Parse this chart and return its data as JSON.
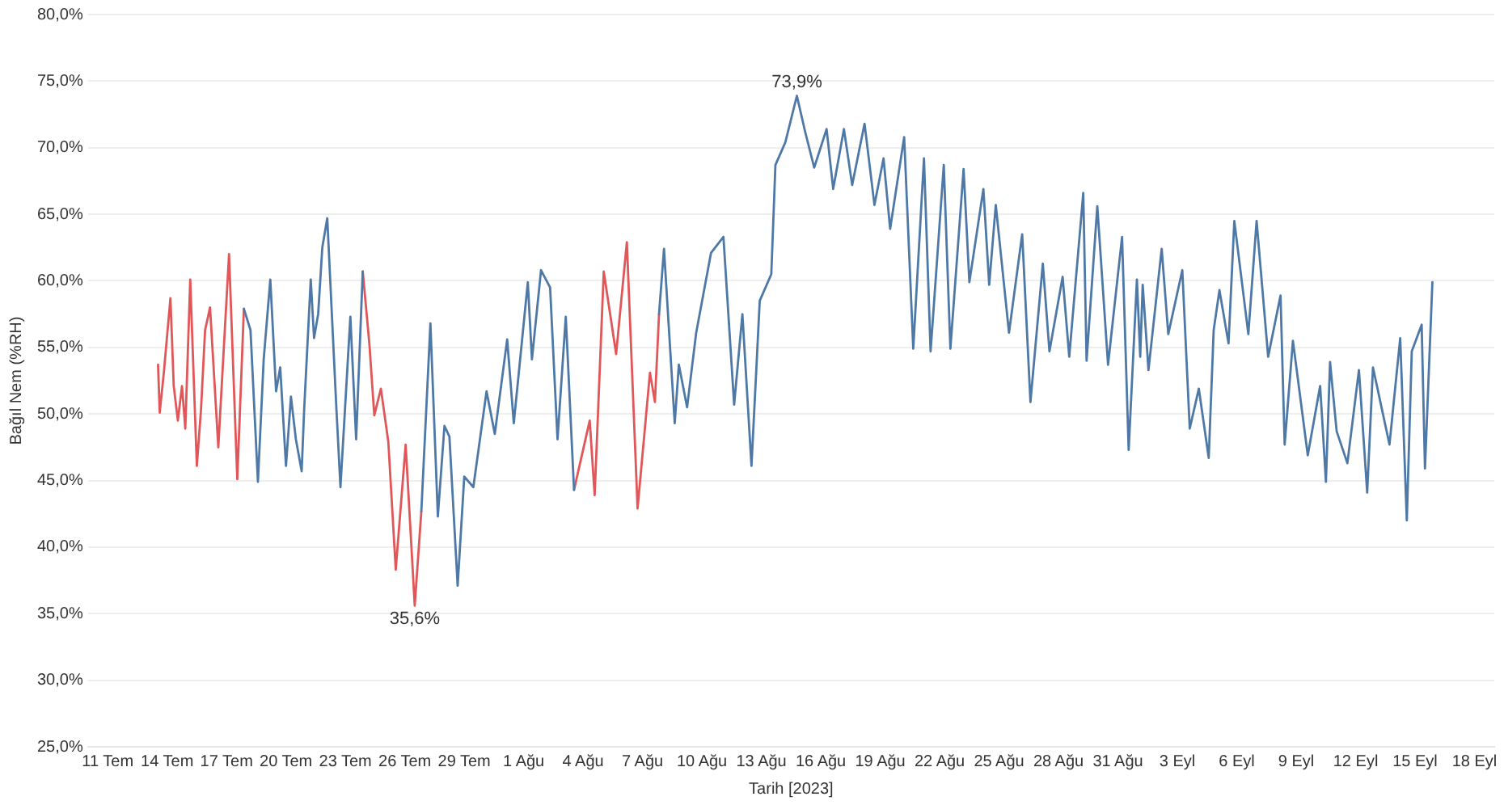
{
  "chart_data": {
    "type": "line",
    "xlabel": "Tarih [2023]",
    "ylabel": "Bağıl Nem (%RH)",
    "grid": "y",
    "legend": false,
    "marker": "none",
    "line_style": "solid",
    "xlim": [
      "2023-07-10T00:00",
      "2023-09-19T00:00"
    ],
    "xticks": [
      {
        "value": "2023-07-11T00:00",
        "label": "11 Tem"
      },
      {
        "value": "2023-07-14T00:00",
        "label": "14 Tem"
      },
      {
        "value": "2023-07-17T00:00",
        "label": "17 Tem"
      },
      {
        "value": "2023-07-20T00:00",
        "label": "20 Tem"
      },
      {
        "value": "2023-07-23T00:00",
        "label": "23 Tem"
      },
      {
        "value": "2023-07-26T00:00",
        "label": "26 Tem"
      },
      {
        "value": "2023-07-29T00:00",
        "label": "29 Tem"
      },
      {
        "value": "2023-08-01T00:00",
        "label": "1 Ağu"
      },
      {
        "value": "2023-08-04T00:00",
        "label": "4 Ağu"
      },
      {
        "value": "2023-08-07T00:00",
        "label": "7 Ağu"
      },
      {
        "value": "2023-08-10T00:00",
        "label": "10 Ağu"
      },
      {
        "value": "2023-08-13T00:00",
        "label": "13 Ağu"
      },
      {
        "value": "2023-08-16T00:00",
        "label": "16 Ağu"
      },
      {
        "value": "2023-08-19T00:00",
        "label": "19 Ağu"
      },
      {
        "value": "2023-08-22T00:00",
        "label": "22 Ağu"
      },
      {
        "value": "2023-08-25T00:00",
        "label": "25 Ağu"
      },
      {
        "value": "2023-08-28T00:00",
        "label": "28 Ağu"
      },
      {
        "value": "2023-08-31T00:00",
        "label": "31 Ağu"
      },
      {
        "value": "2023-09-03T00:00",
        "label": "3 Eyl"
      },
      {
        "value": "2023-09-06T00:00",
        "label": "6 Eyl"
      },
      {
        "value": "2023-09-09T00:00",
        "label": "9 Eyl"
      },
      {
        "value": "2023-09-12T00:00",
        "label": "12 Eyl"
      },
      {
        "value": "2023-09-15T00:00",
        "label": "15 Eyl"
      },
      {
        "value": "2023-09-18T00:00",
        "label": "18 Eyl"
      }
    ],
    "ylim": [
      25,
      80
    ],
    "yticks": [
      {
        "value": 25,
        "label": "25,0%"
      },
      {
        "value": 30,
        "label": "30,0%"
      },
      {
        "value": 35,
        "label": "35,0%"
      },
      {
        "value": 40,
        "label": "40,0%"
      },
      {
        "value": 45,
        "label": "45,0%"
      },
      {
        "value": 50,
        "label": "50,0%"
      },
      {
        "value": 55,
        "label": "55,0%"
      },
      {
        "value": 60,
        "label": "60,0%"
      },
      {
        "value": 65,
        "label": "65,0%"
      },
      {
        "value": 70,
        "label": "70,0%"
      },
      {
        "value": 75,
        "label": "75,0%"
      },
      {
        "value": 80,
        "label": "80,0%"
      }
    ],
    "annotations": [
      {
        "text": "73,9%",
        "x": "2023-08-14T19:00",
        "y": 73.9
      },
      {
        "text": "35,6%",
        "x": "2023-07-26T12:00",
        "y": 35.6
      }
    ],
    "x": [
      "2023-07-13T13:00",
      "2023-07-13T15:00",
      "2023-07-13T20:00",
      "2023-07-14T04:00",
      "2023-07-14T08:00",
      "2023-07-14T13:00",
      "2023-07-14T18:00",
      "2023-07-14T22:00",
      "2023-07-15T04:00",
      "2023-07-15T07:00",
      "2023-07-15T12:00",
      "2023-07-15T17:00",
      "2023-07-15T22:00",
      "2023-07-16T04:00",
      "2023-07-16T14:00",
      "2023-07-17T03:00",
      "2023-07-17T13:00",
      "2023-07-17T21:00",
      "2023-07-18T05:00",
      "2023-07-18T14:00",
      "2023-07-18T21:00",
      "2023-07-19T05:00",
      "2023-07-19T12:00",
      "2023-07-19T17:00",
      "2023-07-20T00:00",
      "2023-07-20T06:00",
      "2023-07-20T12:00",
      "2023-07-20T19:00",
      "2023-07-20T22:00",
      "2023-07-21T06:00",
      "2023-07-21T10:00",
      "2023-07-21T15:00",
      "2023-07-21T20:00",
      "2023-07-22T02:00",
      "2023-07-22T13:00",
      "2023-07-22T18:00",
      "2023-07-23T06:00",
      "2023-07-23T13:00",
      "2023-07-23T21:00",
      "2023-07-24T05:00",
      "2023-07-24T11:00",
      "2023-07-24T19:00",
      "2023-07-25T04:00",
      "2023-07-25T13:00",
      "2023-07-26T01:00",
      "2023-07-26T12:00",
      "2023-07-26T20:00",
      "2023-07-27T07:00",
      "2023-07-27T16:00",
      "2023-07-28T00:00",
      "2023-07-28T06:00",
      "2023-07-28T16:00",
      "2023-07-29T00:00",
      "2023-07-29T11:00",
      "2023-07-30T03:00",
      "2023-07-30T13:00",
      "2023-07-31T04:00",
      "2023-07-31T12:00",
      "2023-08-01T05:00",
      "2023-08-01T10:00",
      "2023-08-01T21:00",
      "2023-08-02T08:00",
      "2023-08-02T17:00",
      "2023-08-03T03:00",
      "2023-08-03T13:00",
      "2023-08-04T08:00",
      "2023-08-04T14:00",
      "2023-08-05T01:00",
      "2023-08-05T16:00",
      "2023-08-06T05:00",
      "2023-08-06T18:00",
      "2023-08-07T09:00",
      "2023-08-07T15:00",
      "2023-08-07T20:00",
      "2023-08-08T02:00",
      "2023-08-08T15:00",
      "2023-08-08T20:00",
      "2023-08-09T06:00",
      "2023-08-09T17:00",
      "2023-08-10T11:00",
      "2023-08-11T02:00",
      "2023-08-11T15:00",
      "2023-08-12T01:00",
      "2023-08-12T12:00",
      "2023-08-12T22:00",
      "2023-08-13T12:00",
      "2023-08-13T17:00",
      "2023-08-14T05:00",
      "2023-08-14T19:00",
      "2023-08-15T05:00",
      "2023-08-15T16:00",
      "2023-08-16T07:00",
      "2023-08-16T15:00",
      "2023-08-17T04:00",
      "2023-08-17T14:00",
      "2023-08-18T05:00",
      "2023-08-18T17:00",
      "2023-08-19T04:00",
      "2023-08-19T12:00",
      "2023-08-20T05:00",
      "2023-08-20T16:00",
      "2023-08-21T05:00",
      "2023-08-21T13:00",
      "2023-08-22T05:00",
      "2023-08-22T13:00",
      "2023-08-23T05:00",
      "2023-08-23T12:00",
      "2023-08-24T05:00",
      "2023-08-24T12:00",
      "2023-08-24T20:00",
      "2023-08-25T12:00",
      "2023-08-26T04:00",
      "2023-08-26T14:00",
      "2023-08-27T05:00",
      "2023-08-27T13:00",
      "2023-08-28T05:00",
      "2023-08-28T13:00",
      "2023-08-29T06:00",
      "2023-08-29T10:00",
      "2023-08-29T23:00",
      "2023-08-30T12:00",
      "2023-08-31T05:00",
      "2023-08-31T13:00",
      "2023-08-31T23:00",
      "2023-09-01T03:00",
      "2023-09-01T06:00",
      "2023-09-01T13:00",
      "2023-09-02T05:00",
      "2023-09-02T13:00",
      "2023-09-03T06:00",
      "2023-09-03T15:00",
      "2023-09-04T02:00",
      "2023-09-04T14:00",
      "2023-09-04T20:00",
      "2023-09-05T03:00",
      "2023-09-05T14:00",
      "2023-09-05T21:00",
      "2023-09-06T14:00",
      "2023-09-07T00:00",
      "2023-09-07T14:00",
      "2023-09-08T05:00",
      "2023-09-08T10:00",
      "2023-09-08T20:00",
      "2023-09-09T14:00",
      "2023-09-10T05:00",
      "2023-09-10T12:00",
      "2023-09-10T17:00",
      "2023-09-11T01:00",
      "2023-09-11T14:00",
      "2023-09-12T04:00",
      "2023-09-12T14:00",
      "2023-09-12T21:00",
      "2023-09-13T17:00",
      "2023-09-14T06:00",
      "2023-09-14T14:00",
      "2023-09-14T20:00",
      "2023-09-15T08:00",
      "2023-09-15T12:00",
      "2023-09-15T21:00"
    ],
    "series": [
      {
        "color": "#4e79a7",
        "values": [
          null,
          null,
          null,
          null,
          null,
          null,
          null,
          null,
          null,
          null,
          null,
          null,
          null,
          null,
          null,
          null,
          null,
          57.9,
          56.3,
          44.9,
          54.1,
          60.1,
          51.7,
          53.5,
          46.1,
          51.3,
          48.1,
          45.7,
          50.3,
          60.1,
          55.7,
          57.5,
          62.5,
          64.7,
          50.5,
          44.5,
          57.3,
          48.1,
          60.7,
          null,
          null,
          null,
          null,
          null,
          null,
          null,
          42.7,
          56.8,
          42.3,
          49.1,
          48.3,
          37.1,
          45.3,
          44.5,
          51.7,
          48.5,
          55.6,
          49.3,
          59.9,
          54.1,
          60.8,
          59.5,
          48.1,
          57.3,
          44.3,
          null,
          null,
          null,
          null,
          null,
          null,
          null,
          null,
          57.5,
          62.4,
          49.3,
          53.7,
          50.5,
          56.1,
          62.1,
          63.3,
          50.7,
          57.5,
          46.1,
          58.5,
          60.5,
          68.7,
          70.4,
          73.9,
          71.2,
          68.5,
          71.4,
          66.9,
          71.4,
          67.2,
          71.8,
          65.7,
          69.2,
          63.9,
          70.8,
          54.9,
          69.2,
          54.7,
          68.7,
          54.9,
          68.4,
          59.9,
          66.9,
          59.7,
          65.7,
          56.1,
          63.5,
          50.9,
          61.3,
          54.7,
          60.3,
          54.3,
          66.6,
          54.0,
          65.6,
          53.7,
          63.3,
          47.3,
          60.1,
          54.3,
          59.7,
          53.3,
          62.4,
          56.0,
          60.8,
          48.9,
          51.9,
          46.7,
          56.3,
          59.3,
          55.3,
          64.5,
          56.0,
          64.5,
          54.3,
          58.9,
          47.7,
          55.5,
          46.9,
          52.1,
          44.9,
          53.9,
          48.7,
          46.3,
          53.3,
          44.1,
          53.5,
          47.7,
          55.7,
          42.0,
          54.7,
          56.7,
          45.9,
          59.9
        ]
      },
      {
        "color": "#e15759",
        "values": [
          53.7,
          50.1,
          53.1,
          58.7,
          52.1,
          49.5,
          52.1,
          48.9,
          60.1,
          54.8,
          46.1,
          50.3,
          56.3,
          58.0,
          47.5,
          62.0,
          45.1,
          57.9,
          null,
          null,
          null,
          null,
          null,
          null,
          null,
          null,
          null,
          null,
          null,
          null,
          null,
          null,
          null,
          null,
          null,
          null,
          null,
          null,
          60.7,
          55.3,
          49.9,
          51.9,
          47.9,
          38.3,
          47.7,
          35.6,
          42.7,
          null,
          null,
          null,
          null,
          null,
          null,
          null,
          null,
          null,
          null,
          null,
          null,
          null,
          null,
          null,
          null,
          null,
          44.3,
          49.5,
          43.9,
          60.7,
          54.5,
          62.9,
          42.9,
          53.1,
          50.9,
          57.5,
          null,
          null,
          null,
          null,
          null,
          null,
          null,
          null,
          null,
          null,
          null,
          null,
          null,
          null,
          null,
          null,
          null,
          null,
          null,
          null,
          null,
          null,
          null,
          null,
          null,
          null,
          null,
          null,
          null,
          null,
          null,
          null,
          null,
          null,
          null,
          null,
          null,
          null,
          null,
          null,
          null,
          null,
          null,
          null,
          null,
          null,
          null,
          null,
          null,
          null,
          null,
          null,
          null,
          null,
          null,
          null,
          null,
          null,
          null,
          null,
          null,
          null,
          null,
          null,
          null,
          null,
          null,
          null,
          null,
          null,
          null,
          null,
          null,
          null,
          null,
          null,
          null,
          null,
          null,
          null,
          null,
          null,
          null,
          null,
          null
        ]
      }
    ]
  }
}
